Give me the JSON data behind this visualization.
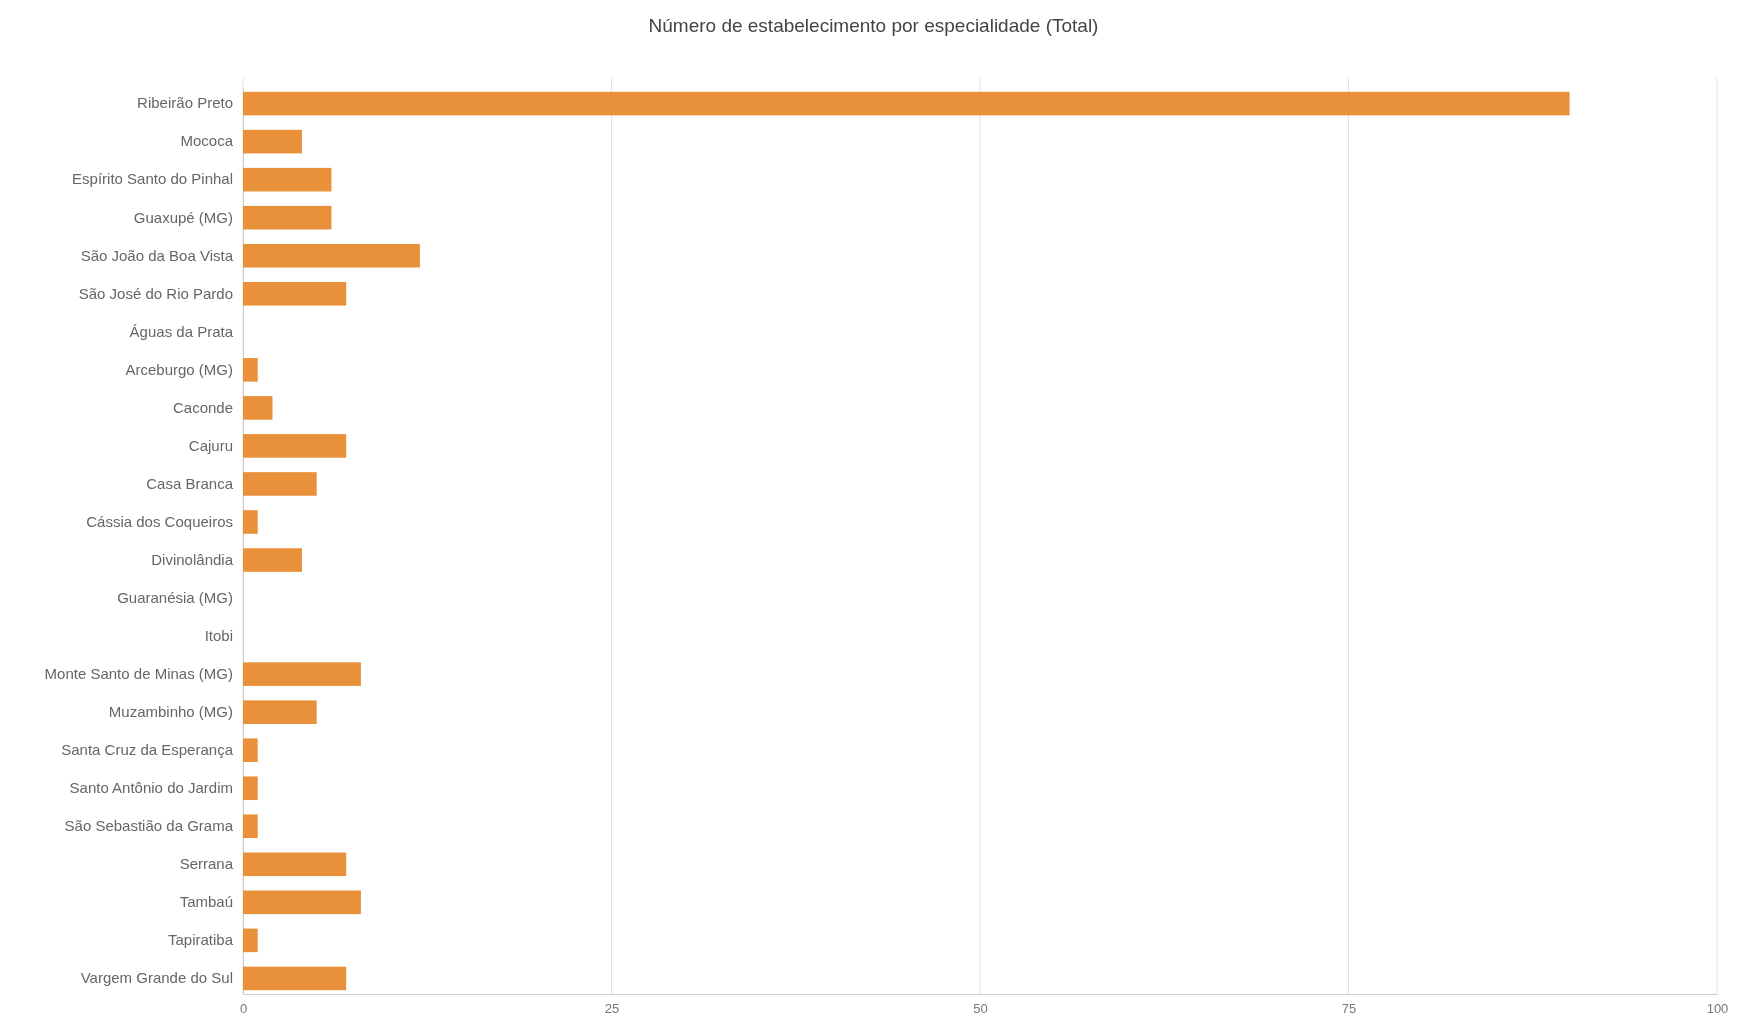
{
  "chart_data": {
    "type": "bar",
    "orientation": "horizontal",
    "title": "Número de estabelecimento por especialidade (Total)",
    "categories": [
      "Ribeirão Preto",
      "Mococa",
      "Espírito Santo do Pinhal",
      "Guaxupé (MG)",
      "São João da Boa Vista",
      "São José do Rio Pardo",
      "Águas da Prata",
      "Arceburgo (MG)",
      "Caconde",
      "Cajuru",
      "Casa Branca",
      "Cássia dos Coqueiros",
      "Divinolândia",
      "Guaranésia (MG)",
      "Itobi",
      "Monte Santo de Minas (MG)",
      "Muzambinho (MG)",
      "Santa Cruz da Esperança",
      "Santo Antônio do Jardim",
      "São Sebastião da Grama",
      "Serrana",
      "Tambaú",
      "Tapiratiba",
      "Vargem Grande do Sul"
    ],
    "values": [
      90,
      4,
      6,
      6,
      12,
      7,
      0,
      1,
      2,
      7,
      5,
      1,
      4,
      0,
      0,
      8,
      5,
      1,
      1,
      1,
      7,
      8,
      1,
      7
    ],
    "color": "#e8903a",
    "xlim": [
      0,
      100
    ],
    "xticks": [
      0,
      25,
      50,
      75,
      100
    ],
    "grid": "x"
  }
}
